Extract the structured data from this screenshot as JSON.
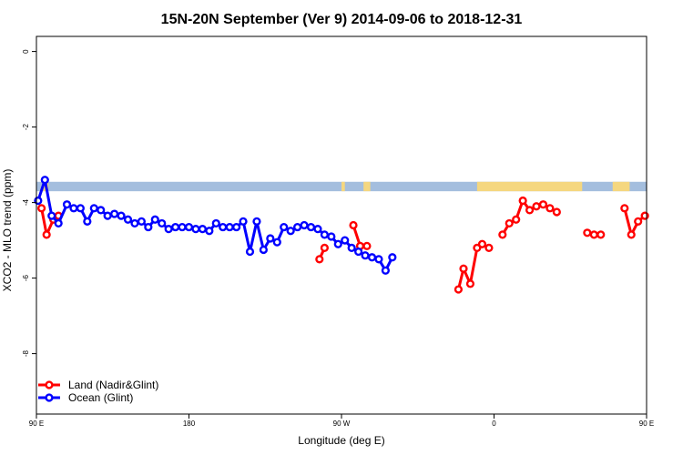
{
  "chart_data": {
    "type": "line",
    "title": "15N-20N September (Ver 9)   2014-09-06 to 2018-12-31",
    "xlabel": "Longitude (deg E)",
    "ylabel": "XCO2 - MLO trend (ppm)",
    "xlim": [
      90,
      450
    ],
    "ylim": [
      -9.6,
      0.4
    ],
    "x_ticks": [
      {
        "value": 90,
        "label": "90 E"
      },
      {
        "value": 180,
        "label": "180"
      },
      {
        "value": 270,
        "label": "90 W"
      },
      {
        "value": 360,
        "label": "0"
      },
      {
        "value": 450,
        "label": "90 E"
      },
      {
        "value": 540,
        "label": "180"
      }
    ],
    "y_ticks": [
      {
        "value": 0,
        "label": "0"
      },
      {
        "value": -2,
        "label": "-2"
      },
      {
        "value": -4,
        "label": "-4"
      },
      {
        "value": -6,
        "label": "-6"
      },
      {
        "value": -8,
        "label": "-8"
      }
    ],
    "legend_position": "bottom-left",
    "map_band": {
      "y_top": -3.45,
      "y_bottom": -3.7,
      "ocean_color": "#a4bede",
      "land_color": "#f5d77f",
      "land_x_ranges": [
        [
          94,
          97
        ],
        [
          270,
          272
        ],
        [
          283,
          287
        ],
        [
          350,
          412
        ],
        [
          430,
          440
        ],
        [
          467,
          485
        ],
        [
          490,
          492
        ]
      ]
    },
    "series": [
      {
        "name": "Land (Nadir&Glint)",
        "color": "#ff0000",
        "segments": [
          [
            [
              93,
              -4.15
            ],
            [
              96,
              -4.85
            ],
            [
              100,
              -4.45
            ],
            [
              103,
              -4.35
            ]
          ],
          [
            [
              257,
              -5.5
            ],
            [
              260,
              -5.2
            ]
          ],
          [
            [
              277,
              -4.6
            ],
            [
              281,
              -5.15
            ],
            [
              285,
              -5.15
            ]
          ],
          [
            [
              339,
              -6.3
            ],
            [
              342,
              -5.75
            ],
            [
              346,
              -6.15
            ],
            [
              350,
              -5.2
            ],
            [
              353,
              -5.1
            ],
            [
              357,
              -5.2
            ]
          ],
          [
            [
              365,
              -4.85
            ],
            [
              369,
              -4.55
            ],
            [
              373,
              -4.45
            ],
            [
              377,
              -3.95
            ],
            [
              381,
              -4.2
            ],
            [
              385,
              -4.1
            ],
            [
              389,
              -4.05
            ],
            [
              393,
              -4.15
            ],
            [
              397,
              -4.25
            ]
          ],
          [
            [
              415,
              -4.8
            ],
            [
              419,
              -4.85
            ],
            [
              423,
              -4.85
            ]
          ],
          [
            [
              437,
              -4.15
            ],
            [
              441,
              -4.85
            ],
            [
              445,
              -4.5
            ],
            [
              449,
              -4.35
            ]
          ]
        ]
      },
      {
        "name": "Ocean (Glint)",
        "color": "#0000ff",
        "segments": [
          [
            [
              91,
              -3.95
            ],
            [
              95,
              -3.4
            ],
            [
              99,
              -4.35
            ],
            [
              103,
              -4.55
            ],
            [
              108,
              -4.05
            ],
            [
              112,
              -4.15
            ],
            [
              116,
              -4.15
            ],
            [
              120,
              -4.5
            ],
            [
              124,
              -4.15
            ],
            [
              128,
              -4.2
            ],
            [
              132,
              -4.35
            ],
            [
              136,
              -4.3
            ],
            [
              140,
              -4.35
            ],
            [
              144,
              -4.45
            ],
            [
              148,
              -4.55
            ],
            [
              152,
              -4.5
            ],
            [
              156,
              -4.65
            ],
            [
              160,
              -4.45
            ],
            [
              164,
              -4.55
            ],
            [
              168,
              -4.7
            ],
            [
              172,
              -4.65
            ],
            [
              176,
              -4.65
            ],
            [
              180,
              -4.65
            ],
            [
              184,
              -4.7
            ],
            [
              188,
              -4.7
            ],
            [
              192,
              -4.75
            ],
            [
              196,
              -4.55
            ],
            [
              200,
              -4.65
            ],
            [
              204,
              -4.65
            ],
            [
              208,
              -4.65
            ],
            [
              212,
              -4.5
            ],
            [
              216,
              -5.3
            ],
            [
              220,
              -4.5
            ],
            [
              224,
              -5.25
            ],
            [
              228,
              -4.95
            ],
            [
              232,
              -5.05
            ],
            [
              236,
              -4.65
            ],
            [
              240,
              -4.75
            ],
            [
              244,
              -4.65
            ],
            [
              248,
              -4.6
            ],
            [
              252,
              -4.65
            ],
            [
              256,
              -4.7
            ],
            [
              260,
              -4.85
            ],
            [
              264,
              -4.9
            ],
            [
              268,
              -5.1
            ],
            [
              272,
              -5.0
            ],
            [
              276,
              -5.2
            ],
            [
              280,
              -5.3
            ],
            [
              284,
              -5.4
            ],
            [
              288,
              -5.45
            ],
            [
              292,
              -5.5
            ],
            [
              296,
              -5.8
            ],
            [
              300,
              -5.45
            ]
          ]
        ],
        "segments_extra": []
      }
    ]
  }
}
